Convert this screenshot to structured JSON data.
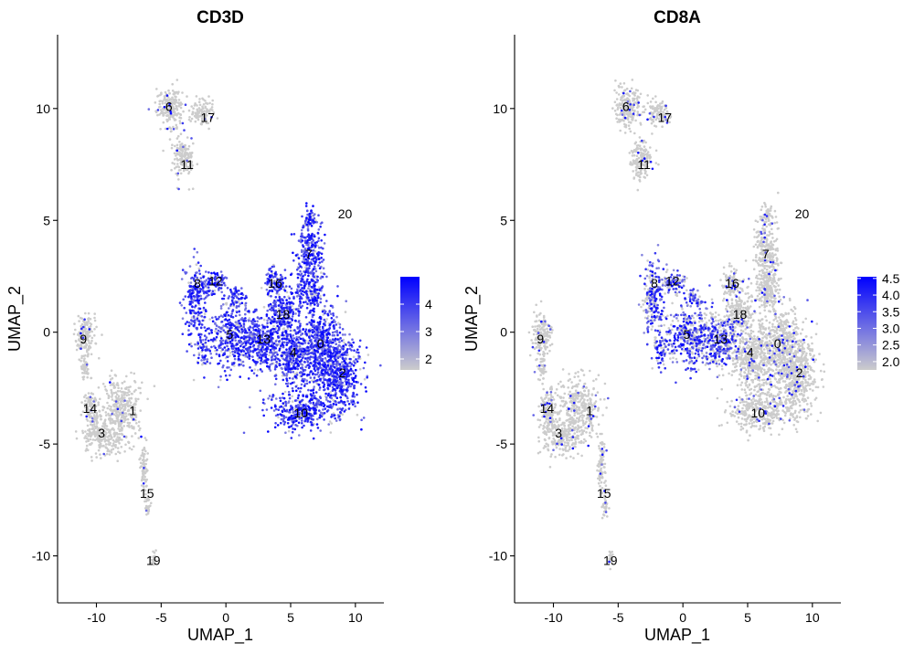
{
  "chart_data": [
    {
      "type": "scatter",
      "title": "CD3D",
      "xlabel": "UMAP_1",
      "ylabel": "UMAP_2",
      "xlim": [
        -13,
        12.2
      ],
      "ylim": [
        -12.1,
        13.3
      ],
      "x_ticks": [
        -10,
        -5,
        0,
        5,
        10
      ],
      "y_ticks": [
        -10,
        -5,
        0,
        5,
        10
      ],
      "x_tick_labels": [
        "-10",
        "-5",
        "0",
        "5",
        "10"
      ],
      "y_tick_labels": [
        "-10",
        "-5",
        "0",
        "5",
        "10"
      ],
      "color_low": "#cccccc",
      "color_high": "#0000ff",
      "colorbar": {
        "min": 1.6,
        "max": 5.0,
        "ticks": [
          2,
          3,
          4
        ],
        "tick_labels": [
          "2",
          "3",
          "4"
        ]
      },
      "expressed_clusters": [
        "0",
        "2",
        "4",
        "5",
        "7",
        "8",
        "10",
        "12",
        "13",
        "16",
        "18",
        "20"
      ],
      "clusters": [
        {
          "label": "0",
          "x": 7.3,
          "y": -0.5
        },
        {
          "label": "1",
          "x": -7.2,
          "y": -3.5
        },
        {
          "label": "2",
          "x": 9.0,
          "y": -1.8
        },
        {
          "label": "3",
          "x": -9.6,
          "y": -4.5
        },
        {
          "label": "4",
          "x": 5.2,
          "y": -0.9
        },
        {
          "label": "5",
          "x": 0.3,
          "y": -0.1
        },
        {
          "label": "6",
          "x": -4.4,
          "y": 10.1
        },
        {
          "label": "7",
          "x": 6.4,
          "y": 3.5
        },
        {
          "label": "8",
          "x": -2.2,
          "y": 2.2
        },
        {
          "label": "9",
          "x": -11.0,
          "y": -0.3
        },
        {
          "label": "10",
          "x": 5.8,
          "y": -3.6
        },
        {
          "label": "11",
          "x": -3.0,
          "y": 7.5
        },
        {
          "label": "12",
          "x": -0.8,
          "y": 2.3
        },
        {
          "label": "13",
          "x": 2.9,
          "y": -0.3
        },
        {
          "label": "14",
          "x": -10.5,
          "y": -3.4
        },
        {
          "label": "15",
          "x": -6.1,
          "y": -7.2
        },
        {
          "label": "16",
          "x": 3.8,
          "y": 2.2
        },
        {
          "label": "17",
          "x": -1.4,
          "y": 9.6
        },
        {
          "label": "18",
          "x": 4.4,
          "y": 0.8
        },
        {
          "label": "19",
          "x": -5.6,
          "y": -10.2
        },
        {
          "label": "20",
          "x": 9.2,
          "y": 5.3
        }
      ]
    },
    {
      "type": "scatter",
      "title": "CD8A",
      "xlabel": "UMAP_1",
      "ylabel": "UMAP_2",
      "xlim": [
        -13,
        12.2
      ],
      "ylim": [
        -12.1,
        13.3
      ],
      "x_ticks": [
        -10,
        -5,
        0,
        5,
        10
      ],
      "y_ticks": [
        -10,
        -5,
        0,
        5,
        10
      ],
      "x_tick_labels": [
        "-10",
        "-5",
        "0",
        "5",
        "10"
      ],
      "y_tick_labels": [
        "-10",
        "-5",
        "0",
        "5",
        "10"
      ],
      "color_low": "#cccccc",
      "color_high": "#0000ff",
      "colorbar": {
        "min": 1.75,
        "max": 4.55,
        "ticks": [
          2.0,
          2.5,
          3.0,
          3.5,
          4.0,
          4.5
        ],
        "tick_labels": [
          "2.0",
          "2.5",
          "3.0",
          "3.5",
          "4.0",
          "4.5"
        ]
      },
      "expressed_clusters": [
        "5",
        "8",
        "12",
        "13"
      ],
      "clusters": [
        {
          "label": "0",
          "x": 7.3,
          "y": -0.5
        },
        {
          "label": "1",
          "x": -7.2,
          "y": -3.5
        },
        {
          "label": "2",
          "x": 9.0,
          "y": -1.8
        },
        {
          "label": "3",
          "x": -9.6,
          "y": -4.5
        },
        {
          "label": "4",
          "x": 5.2,
          "y": -0.9
        },
        {
          "label": "5",
          "x": 0.3,
          "y": -0.1
        },
        {
          "label": "6",
          "x": -4.4,
          "y": 10.1
        },
        {
          "label": "7",
          "x": 6.4,
          "y": 3.5
        },
        {
          "label": "8",
          "x": -2.2,
          "y": 2.2
        },
        {
          "label": "9",
          "x": -11.0,
          "y": -0.3
        },
        {
          "label": "10",
          "x": 5.8,
          "y": -3.6
        },
        {
          "label": "11",
          "x": -3.0,
          "y": 7.5
        },
        {
          "label": "12",
          "x": -0.8,
          "y": 2.3
        },
        {
          "label": "13",
          "x": 2.9,
          "y": -0.3
        },
        {
          "label": "14",
          "x": -10.5,
          "y": -3.4
        },
        {
          "label": "15",
          "x": -6.1,
          "y": -7.2
        },
        {
          "label": "16",
          "x": 3.8,
          "y": 2.2
        },
        {
          "label": "17",
          "x": -1.4,
          "y": 9.6
        },
        {
          "label": "18",
          "x": 4.4,
          "y": 0.8
        },
        {
          "label": "19",
          "x": -5.6,
          "y": -10.2
        },
        {
          "label": "20",
          "x": 9.2,
          "y": 5.3
        }
      ]
    }
  ]
}
